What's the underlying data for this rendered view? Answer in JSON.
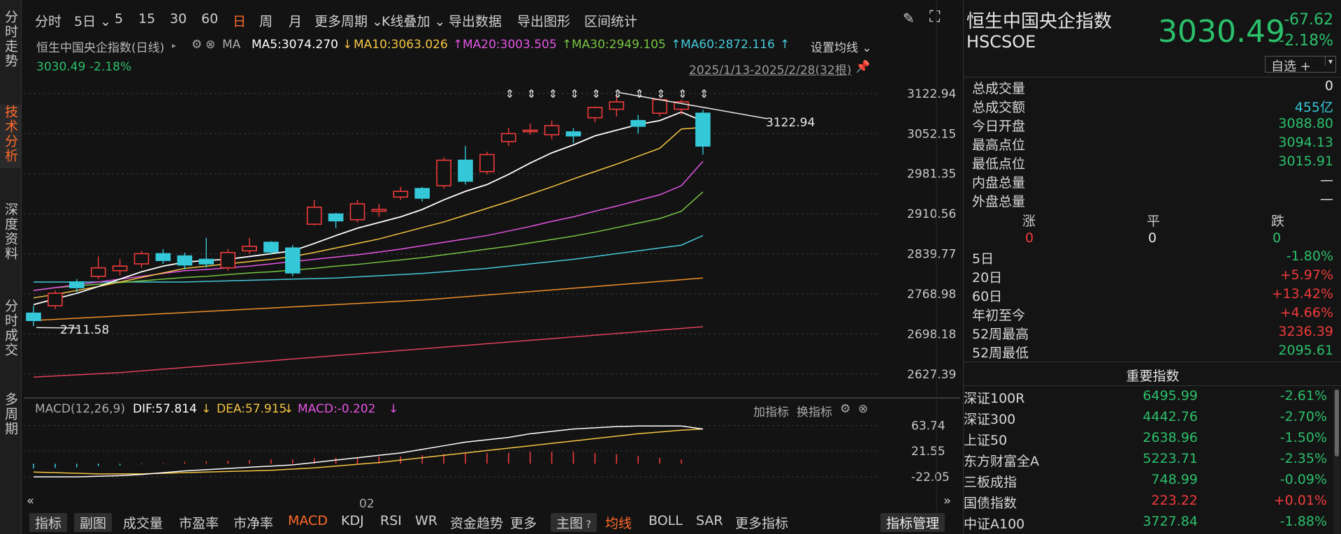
{
  "left_tabs": [
    "分时走势",
    "技术分析",
    "深度资料",
    "分时成交",
    "多周期"
  ],
  "toolbar": {
    "items": [
      "分时",
      "5日",
      "5",
      "15",
      "30",
      "60",
      "日",
      "周",
      "月",
      "更多周期",
      "K线叠加",
      "导出数据",
      "导出图形",
      "区间统计"
    ],
    "active": "日"
  },
  "legend": {
    "name": "恒生中国央企指数(日线)",
    "ma_label": "MA",
    "ma5": "MA5:3074.270",
    "ma10": "MA10:3063.026",
    "ma20": "MA20:3003.505",
    "ma30": "MA30:2949.105",
    "ma60": "MA60:2872.116",
    "settings": "设置均线",
    "last": "3030.49",
    "last_chg": "-2.18%",
    "range": "2025/1/13-2025/2/28(32根)",
    "colors": {
      "ma5": "#ffffff",
      "ma10": "#f5c542",
      "ma20": "#e455e4",
      "ma30": "#76c442",
      "ma60": "#46c8d8",
      "ma120": "#f0902a",
      "ma250": "#e0405a"
    }
  },
  "price_axis": [
    "3122.94",
    "3052.15",
    "2981.35",
    "2910.56",
    "2839.77",
    "2768.98",
    "2698.18",
    "2627.39"
  ],
  "annotations": {
    "high": "3122.94",
    "low": "2711.58"
  },
  "macd": {
    "label": "MACD(12,26,9)",
    "dif": "DIF:57.814",
    "dea": "DEA:57.915",
    "macd": "MACD:-0.202",
    "add": "加指标",
    "swap": "换指标",
    "axis": [
      "63.74",
      "21.55",
      "-22.05"
    ]
  },
  "x_label": "02",
  "chart_data": {
    "type": "candlestick",
    "ylim": [
      2610,
      3140
    ],
    "candles": [
      [
        2735,
        2722,
        2748,
        2712
      ],
      [
        2748,
        2770,
        2775,
        2742
      ],
      [
        2790,
        2780,
        2795,
        2772
      ],
      [
        2800,
        2815,
        2835,
        2795
      ],
      [
        2810,
        2818,
        2830,
        2802
      ],
      [
        2822,
        2840,
        2845,
        2815
      ],
      [
        2840,
        2828,
        2848,
        2822
      ],
      [
        2836,
        2820,
        2842,
        2812
      ],
      [
        2830,
        2822,
        2868,
        2815
      ],
      [
        2815,
        2842,
        2848,
        2810
      ],
      [
        2845,
        2853,
        2868,
        2840
      ],
      [
        2860,
        2843,
        2862,
        2838
      ],
      [
        2850,
        2806,
        2855,
        2800
      ],
      [
        2892,
        2922,
        2935,
        2890
      ],
      [
        2910,
        2898,
        2912,
        2885
      ],
      [
        2900,
        2928,
        2935,
        2895
      ],
      [
        2915,
        2918,
        2928,
        2905
      ],
      [
        2940,
        2950,
        2958,
        2935
      ],
      [
        2955,
        2938,
        2958,
        2932
      ],
      [
        2960,
        3005,
        3010,
        2955
      ],
      [
        3005,
        2968,
        3030,
        2962
      ],
      [
        2985,
        3015,
        3020,
        2980
      ],
      [
        3038,
        3052,
        3062,
        3030
      ],
      [
        3058,
        3058,
        3070,
        3050
      ],
      [
        3050,
        3066,
        3075,
        3042
      ],
      [
        3055,
        3048,
        3062,
        3035
      ],
      [
        3080,
        3098,
        3100,
        3072
      ],
      [
        3095,
        3108,
        3122,
        3082
      ],
      [
        3075,
        3065,
        3085,
        3052
      ],
      [
        3088,
        3112,
        3115,
        3082
      ],
      [
        3095,
        3108,
        3112,
        3085
      ],
      [
        3088,
        3030,
        3094,
        3015
      ]
    ],
    "ma5": [
      2750,
      2760,
      2770,
      2782,
      2795,
      2808,
      2818,
      2825,
      2828,
      2830,
      2835,
      2840,
      2845,
      2858,
      2872,
      2885,
      2895,
      2905,
      2918,
      2935,
      2950,
      2962,
      2980,
      3000,
      3018,
      3032,
      3048,
      3058,
      3068,
      3075,
      3090,
      3074
    ],
    "ma10": [
      2762,
      2768,
      2775,
      2782,
      2790,
      2798,
      2806,
      2814,
      2818,
      2822,
      2826,
      2830,
      2835,
      2842,
      2850,
      2858,
      2866,
      2876,
      2886,
      2896,
      2908,
      2920,
      2932,
      2945,
      2958,
      2972,
      2985,
      2998,
      3012,
      3026,
      3060,
      3063
    ],
    "ma20": [
      2775,
      2780,
      2785,
      2790,
      2795,
      2800,
      2805,
      2810,
      2812,
      2815,
      2818,
      2822,
      2826,
      2830,
      2834,
      2838,
      2843,
      2848,
      2854,
      2860,
      2866,
      2872,
      2880,
      2888,
      2897,
      2905,
      2915,
      2924,
      2934,
      2944,
      2960,
      3003
    ],
    "ma30": [
      2775,
      2780,
      2783,
      2786,
      2789,
      2792,
      2795,
      2798,
      2800,
      2803,
      2806,
      2808,
      2811,
      2814,
      2818,
      2821,
      2825,
      2829,
      2833,
      2838,
      2843,
      2848,
      2853,
      2859,
      2865,
      2871,
      2878,
      2886,
      2894,
      2902,
      2915,
      2949
    ],
    "ma60": [
      2790,
      2790,
      2790,
      2790,
      2790,
      2790,
      2790,
      2790,
      2791,
      2792,
      2793,
      2794,
      2795,
      2796,
      2797,
      2799,
      2801,
      2803,
      2805,
      2808,
      2811,
      2814,
      2818,
      2822,
      2826,
      2830,
      2835,
      2840,
      2845,
      2850,
      2855,
      2872
    ],
    "ma120": [
      2722,
      2724,
      2726,
      2728,
      2730,
      2732,
      2734,
      2736,
      2738,
      2740,
      2742,
      2744,
      2746,
      2748,
      2750,
      2752,
      2754,
      2756,
      2758,
      2761,
      2764,
      2767,
      2770,
      2773,
      2776,
      2779,
      2782,
      2785,
      2788,
      2791,
      2794,
      2797
    ],
    "ma250": [
      2622,
      2624,
      2626,
      2628,
      2630,
      2633,
      2636,
      2639,
      2642,
      2645,
      2648,
      2651,
      2654,
      2657,
      2660,
      2663,
      2666,
      2669,
      2672,
      2675,
      2678,
      2681,
      2684,
      2687,
      2690,
      2693,
      2696,
      2699,
      2702,
      2705,
      2708,
      2711
    ],
    "macd_ylim": [
      -30,
      75
    ],
    "dif": [
      -22,
      -22,
      -22,
      -21,
      -20,
      -18,
      -15,
      -12,
      -10,
      -8,
      -6,
      -4,
      -2,
      2,
      6,
      10,
      14,
      18,
      24,
      30,
      36,
      40,
      44,
      50,
      54,
      58,
      60,
      62,
      63,
      63,
      63,
      58
    ],
    "dea": [
      -14,
      -15,
      -16,
      -17,
      -17,
      -17,
      -16,
      -15,
      -14,
      -13,
      -12,
      -11,
      -9,
      -7,
      -4,
      -1,
      2,
      6,
      10,
      14,
      18,
      22,
      26,
      30,
      34,
      38,
      42,
      46,
      50,
      53,
      56,
      58
    ],
    "hist": [
      -8,
      -7,
      -6,
      -4,
      -3,
      -1,
      1,
      3,
      4,
      5,
      6,
      7,
      7,
      9,
      10,
      11,
      12,
      12,
      14,
      16,
      18,
      18,
      18,
      20,
      20,
      20,
      18,
      16,
      13,
      10,
      7,
      -0.2
    ]
  },
  "right_panel": {
    "name": "恒生中国央企指数",
    "code": "HSCSOE",
    "price": "3030.49",
    "change": "-67.62",
    "change_pct": "-2.18%",
    "add_fav": "自选 +",
    "stats": [
      {
        "k": "总成交量",
        "v": "0",
        "c": "white"
      },
      {
        "k": "总成交额",
        "v": "455亿",
        "c": "cyan"
      },
      {
        "k": "今日开盘",
        "v": "3088.80",
        "c": "green"
      },
      {
        "k": "最高点位",
        "v": "3094.13",
        "c": "green"
      },
      {
        "k": "最低点位",
        "v": "3015.91",
        "c": "green"
      },
      {
        "k": "内盘总量",
        "v": "—",
        "c": "white"
      },
      {
        "k": "外盘总量",
        "v": "—",
        "c": "white"
      }
    ],
    "breadth_labels": [
      "涨",
      "平",
      "跌"
    ],
    "breadth_values": [
      "0",
      "0",
      "0"
    ],
    "perf": [
      {
        "k": "5日",
        "v": "-1.80%",
        "c": "green"
      },
      {
        "k": "20日",
        "v": "+5.97%",
        "c": "red"
      },
      {
        "k": "60日",
        "v": "+13.42%",
        "c": "red"
      },
      {
        "k": "年初至今",
        "v": "+4.66%",
        "c": "red"
      },
      {
        "k": "52周最高",
        "v": "3236.39",
        "c": "red"
      },
      {
        "k": "52周最低",
        "v": "2095.61",
        "c": "green"
      }
    ],
    "indices_title": "重要指数",
    "indices": [
      {
        "n": "深证100R",
        "p": "6495.99",
        "c": "-2.61%",
        "pc": "green",
        "cc": "green"
      },
      {
        "n": "深证300",
        "p": "4442.76",
        "c": "-2.70%",
        "pc": "green",
        "cc": "green"
      },
      {
        "n": "上证50",
        "p": "2638.96",
        "c": "-1.50%",
        "pc": "green",
        "cc": "green"
      },
      {
        "n": "东方财富全A",
        "p": "5223.71",
        "c": "-2.35%",
        "pc": "green",
        "cc": "green"
      },
      {
        "n": "三板成指",
        "p": "748.99",
        "c": "-0.09%",
        "pc": "green",
        "cc": "green"
      },
      {
        "n": "国债指数",
        "p": "223.22",
        "c": "+0.01%",
        "pc": "red",
        "cc": "red"
      },
      {
        "n": "中证A100",
        "p": "3727.84",
        "c": "-1.88%",
        "pc": "green",
        "cc": "green"
      }
    ]
  },
  "bottom_tabs": {
    "items": [
      "指标",
      "副图",
      "成交量",
      "市盈率",
      "市净率",
      "MACD",
      "KDJ",
      "RSI",
      "WR",
      "资金趋势",
      "更多",
      "主图",
      "均线",
      "BOLL",
      "SAR",
      "更多指标",
      "指标管理"
    ],
    "active": [
      "MACD",
      "均线"
    ]
  }
}
